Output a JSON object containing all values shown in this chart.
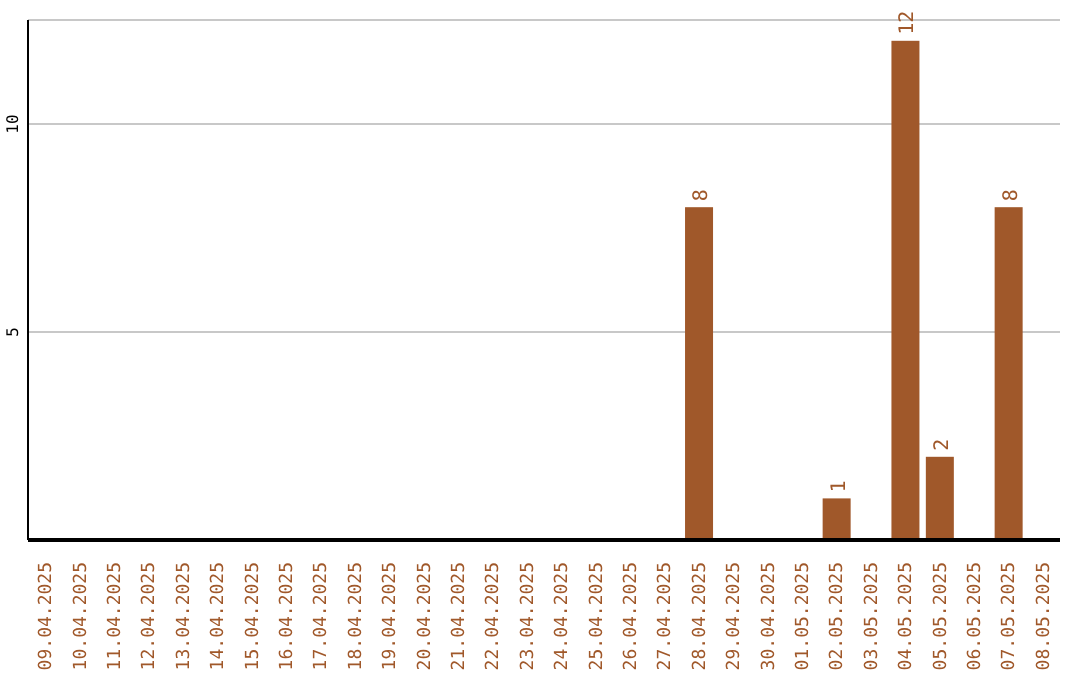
{
  "chart_data": {
    "type": "bar",
    "categories": [
      "09.04.2025",
      "10.04.2025",
      "11.04.2025",
      "12.04.2025",
      "13.04.2025",
      "14.04.2025",
      "15.04.2025",
      "16.04.2025",
      "17.04.2025",
      "18.04.2025",
      "19.04.2025",
      "20.04.2025",
      "21.04.2025",
      "22.04.2025",
      "23.04.2025",
      "24.04.2025",
      "25.04.2025",
      "26.04.2025",
      "27.04.2025",
      "28.04.2025",
      "29.04.2025",
      "30.04.2025",
      "01.05.2025",
      "02.05.2025",
      "03.05.2025",
      "04.05.2025",
      "05.05.2025",
      "06.05.2025",
      "07.05.2025",
      "08.05.2025"
    ],
    "values": [
      0,
      0,
      0,
      0,
      0,
      0,
      0,
      0,
      0,
      0,
      0,
      0,
      0,
      0,
      0,
      0,
      0,
      0,
      0,
      8,
      0,
      0,
      0,
      1,
      0,
      12,
      2,
      0,
      8,
      0
    ],
    "value_labels": [
      null,
      null,
      null,
      null,
      null,
      null,
      null,
      null,
      null,
      null,
      null,
      null,
      null,
      null,
      null,
      null,
      null,
      null,
      null,
      "8",
      null,
      null,
      null,
      "1",
      null,
      "12",
      "2",
      null,
      "8",
      null
    ],
    "color": "#a0582a",
    "ylim": [
      0,
      12.5
    ],
    "yticks": [
      5,
      10
    ],
    "grid": "y"
  }
}
